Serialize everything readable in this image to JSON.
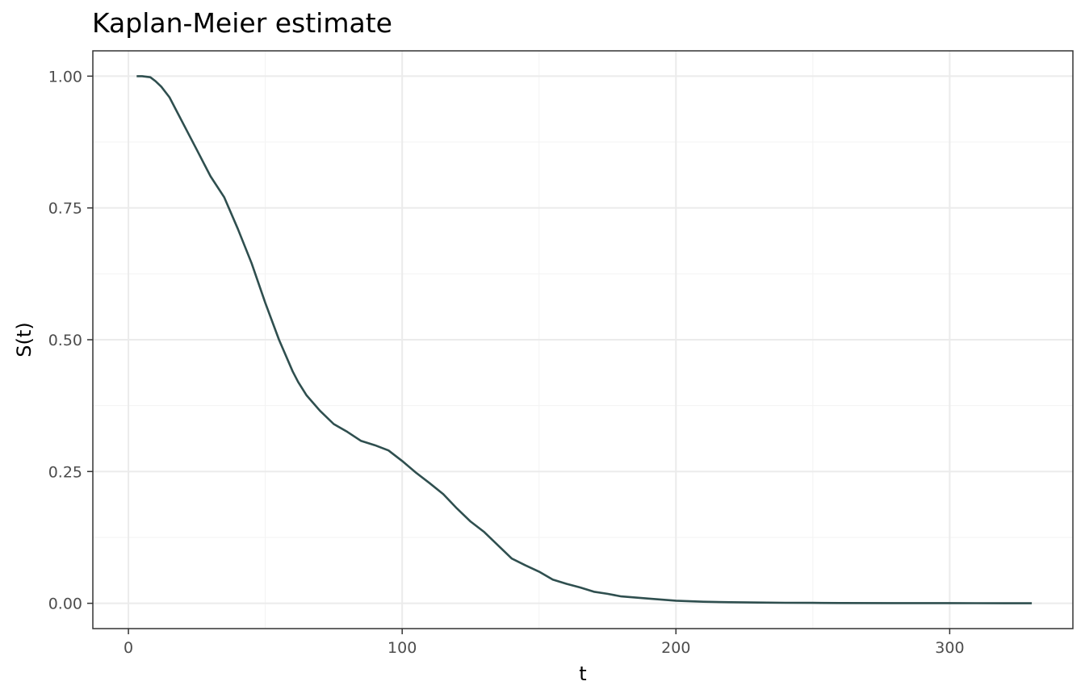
{
  "chart_data": {
    "type": "line",
    "title": "Kaplan-Meier estimate",
    "xlabel": "t",
    "ylabel": "S(t)",
    "xlim": [
      -13,
      345
    ],
    "ylim": [
      -0.048,
      1.048
    ],
    "x_ticks": [
      0,
      100,
      200,
      300
    ],
    "x_tick_labels": [
      "0",
      "100",
      "200",
      "300"
    ],
    "x_minor_ticks": [
      50,
      150,
      250
    ],
    "y_ticks": [
      0.0,
      0.25,
      0.5,
      0.75,
      1.0
    ],
    "y_tick_labels": [
      "0.00",
      "0.25",
      "0.50",
      "0.75",
      "1.00"
    ],
    "y_minor_ticks": [
      0.125,
      0.375,
      0.625,
      0.875
    ],
    "grid": true,
    "line_color": "#2f4f4f",
    "series": [
      {
        "x": [
          3,
          5,
          8,
          10,
          12,
          15,
          18,
          20,
          25,
          28,
          30,
          35,
          40,
          45,
          50,
          55,
          60,
          62,
          65,
          70,
          75,
          80,
          85,
          90,
          95,
          100,
          105,
          110,
          115,
          120,
          125,
          130,
          135,
          140,
          145,
          150,
          155,
          160,
          165,
          170,
          175,
          180,
          190,
          200,
          210,
          220,
          230,
          240,
          250,
          260,
          280,
          300,
          310,
          320,
          330
        ],
        "y": [
          1.0,
          1.0,
          0.998,
          0.99,
          0.98,
          0.96,
          0.93,
          0.91,
          0.86,
          0.83,
          0.81,
          0.77,
          0.71,
          0.645,
          0.57,
          0.5,
          0.44,
          0.42,
          0.395,
          0.365,
          0.34,
          0.325,
          0.308,
          0.3,
          0.29,
          0.27,
          0.248,
          0.228,
          0.207,
          0.18,
          0.155,
          0.135,
          0.11,
          0.085,
          0.072,
          0.06,
          0.045,
          0.037,
          0.03,
          0.022,
          0.018,
          0.013,
          0.009,
          0.005,
          0.003,
          0.002,
          0.0015,
          0.001,
          0.0008,
          0.0006,
          0.0004,
          0.0003,
          0.0002,
          0.0001,
          0.0
        ]
      }
    ]
  }
}
